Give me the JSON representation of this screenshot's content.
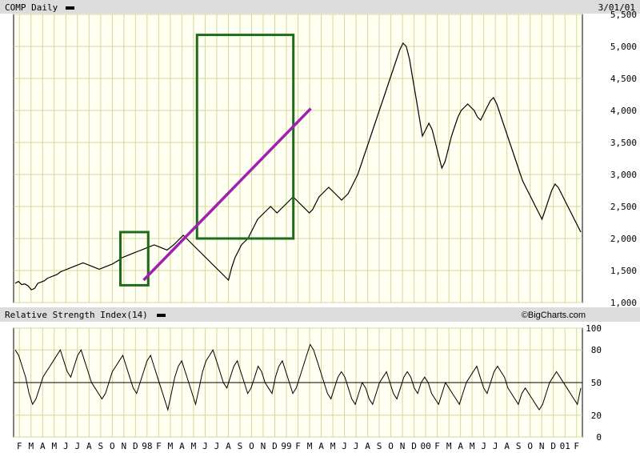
{
  "header": {
    "main_title": "COMP Daily",
    "date": "3/01/01",
    "rsi_title": "Relative Strength Index(14)",
    "credit": "©BigCharts.com"
  },
  "colors": {
    "grid": "#d6d69a",
    "panel_bg": "#fffff2",
    "header_bg": "#dcdcdc",
    "price_line": "#000000",
    "box": "#1e6b1e",
    "trendline": "#a020b0"
  },
  "chart_data": [
    {
      "type": "line",
      "series": [
        {
          "values": [
            1300,
            1330,
            1280,
            1290,
            1260,
            1200,
            1220,
            1300,
            1320,
            1340,
            1380,
            1400,
            1420,
            1440,
            1480,
            1500,
            1520,
            1540,
            1560,
            1580,
            1600,
            1620,
            1600,
            1580,
            1560,
            1540,
            1520,
            1540,
            1560,
            1580,
            1600,
            1630,
            1660,
            1700,
            1720,
            1740,
            1760,
            1780,
            1800,
            1820,
            1840,
            1860,
            1880,
            1900,
            1880,
            1860,
            1840,
            1820,
            1860,
            1900,
            1950,
            2000,
            2050,
            2000,
            1950,
            1900,
            1850,
            1800,
            1750,
            1700,
            1650,
            1600,
            1550,
            1500,
            1450,
            1400,
            1350,
            1550,
            1700,
            1800,
            1900,
            1950,
            2000,
            2100,
            2200,
            2300,
            2350,
            2400,
            2450,
            2500,
            2450,
            2400,
            2450,
            2500,
            2550,
            2600,
            2650,
            2600,
            2550,
            2500,
            2450,
            2400,
            2450,
            2550,
            2650,
            2700,
            2750,
            2800,
            2750,
            2700,
            2650,
            2600,
            2650,
            2700,
            2800,
            2900,
            3000,
            3150,
            3300,
            3450,
            3600,
            3750,
            3900,
            4050,
            4200,
            4350,
            4500,
            4650,
            4800,
            4950,
            5050,
            5000,
            4800,
            4500,
            4200,
            3900,
            3600,
            3700,
            3800,
            3700,
            3500,
            3300,
            3100,
            3200,
            3400,
            3600,
            3750,
            3900,
            4000,
            4050,
            4100,
            4050,
            4000,
            3900,
            3850,
            3950,
            4050,
            4150,
            4200,
            4100,
            3950,
            3800,
            3650,
            3500,
            3350,
            3200,
            3050,
            2900,
            2800,
            2700,
            2600,
            2500,
            2400,
            2300,
            2450,
            2600,
            2750,
            2850,
            2800,
            2700,
            2600,
            2500,
            2400,
            2300,
            2200,
            2100
          ]
        }
      ],
      "x_ticks": [
        "F",
        "M",
        "A",
        "M",
        "J",
        "J",
        "A",
        "S",
        "O",
        "N",
        "D",
        "98",
        "F",
        "M",
        "A",
        "M",
        "J",
        "J",
        "A",
        "S",
        "O",
        "N",
        "D",
        "99",
        "F",
        "M",
        "A",
        "M",
        "J",
        "J",
        "A",
        "S",
        "O",
        "N",
        "D",
        "00",
        "F",
        "M",
        "A",
        "M",
        "J",
        "J",
        "A",
        "S",
        "O",
        "N",
        "D",
        "01",
        "F"
      ],
      "y_ticks": [
        "1,000",
        "1,500",
        "2,000",
        "2,500",
        "3,000",
        "3,500",
        "4,000",
        "4,500",
        "5,000",
        "5,500"
      ],
      "ylim": [
        1000,
        5500
      ],
      "grid": true,
      "annotations": [
        {
          "kind": "box",
          "x_start": 9.2,
          "x_end": 11.6,
          "y_low": 1270,
          "y_high": 2100
        },
        {
          "kind": "box",
          "x_start": 15.8,
          "x_end": 24.1,
          "y_low": 2000,
          "y_high": 5180
        },
        {
          "kind": "trendline",
          "x_start": 11.2,
          "y_start": 1350,
          "x_end": 25.6,
          "y_end": 4030
        }
      ]
    },
    {
      "type": "line",
      "series": [
        {
          "values": [
            80,
            75,
            65,
            55,
            40,
            30,
            35,
            45,
            55,
            60,
            65,
            70,
            75,
            80,
            70,
            60,
            55,
            65,
            75,
            80,
            70,
            60,
            50,
            45,
            40,
            35,
            40,
            50,
            60,
            65,
            70,
            75,
            65,
            55,
            45,
            40,
            50,
            60,
            70,
            75,
            65,
            55,
            45,
            35,
            25,
            40,
            55,
            65,
            70,
            60,
            50,
            40,
            30,
            45,
            60,
            70,
            75,
            80,
            70,
            60,
            50,
            45,
            55,
            65,
            70,
            60,
            50,
            40,
            45,
            55,
            65,
            60,
            50,
            45,
            40,
            55,
            65,
            70,
            60,
            50,
            40,
            45,
            55,
            65,
            75,
            85,
            80,
            70,
            60,
            50,
            40,
            35,
            45,
            55,
            60,
            55,
            45,
            35,
            30,
            40,
            50,
            45,
            35,
            30,
            40,
            50,
            55,
            60,
            50,
            40,
            35,
            45,
            55,
            60,
            55,
            45,
            40,
            50,
            55,
            50,
            40,
            35,
            30,
            40,
            50,
            45,
            40,
            35,
            30,
            40,
            50,
            55,
            60,
            65,
            55,
            45,
            40,
            50,
            60,
            65,
            60,
            55,
            45,
            40,
            35,
            30,
            40,
            45,
            40,
            35,
            30,
            25,
            30,
            40,
            50,
            55,
            60,
            55,
            50,
            45,
            40,
            35,
            30,
            45
          ]
        }
      ],
      "y_ticks": [
        "0",
        "20",
        "50",
        "80",
        "100"
      ],
      "ylim": [
        0,
        100
      ],
      "reference_lines": [
        50
      ],
      "grid": true
    }
  ]
}
